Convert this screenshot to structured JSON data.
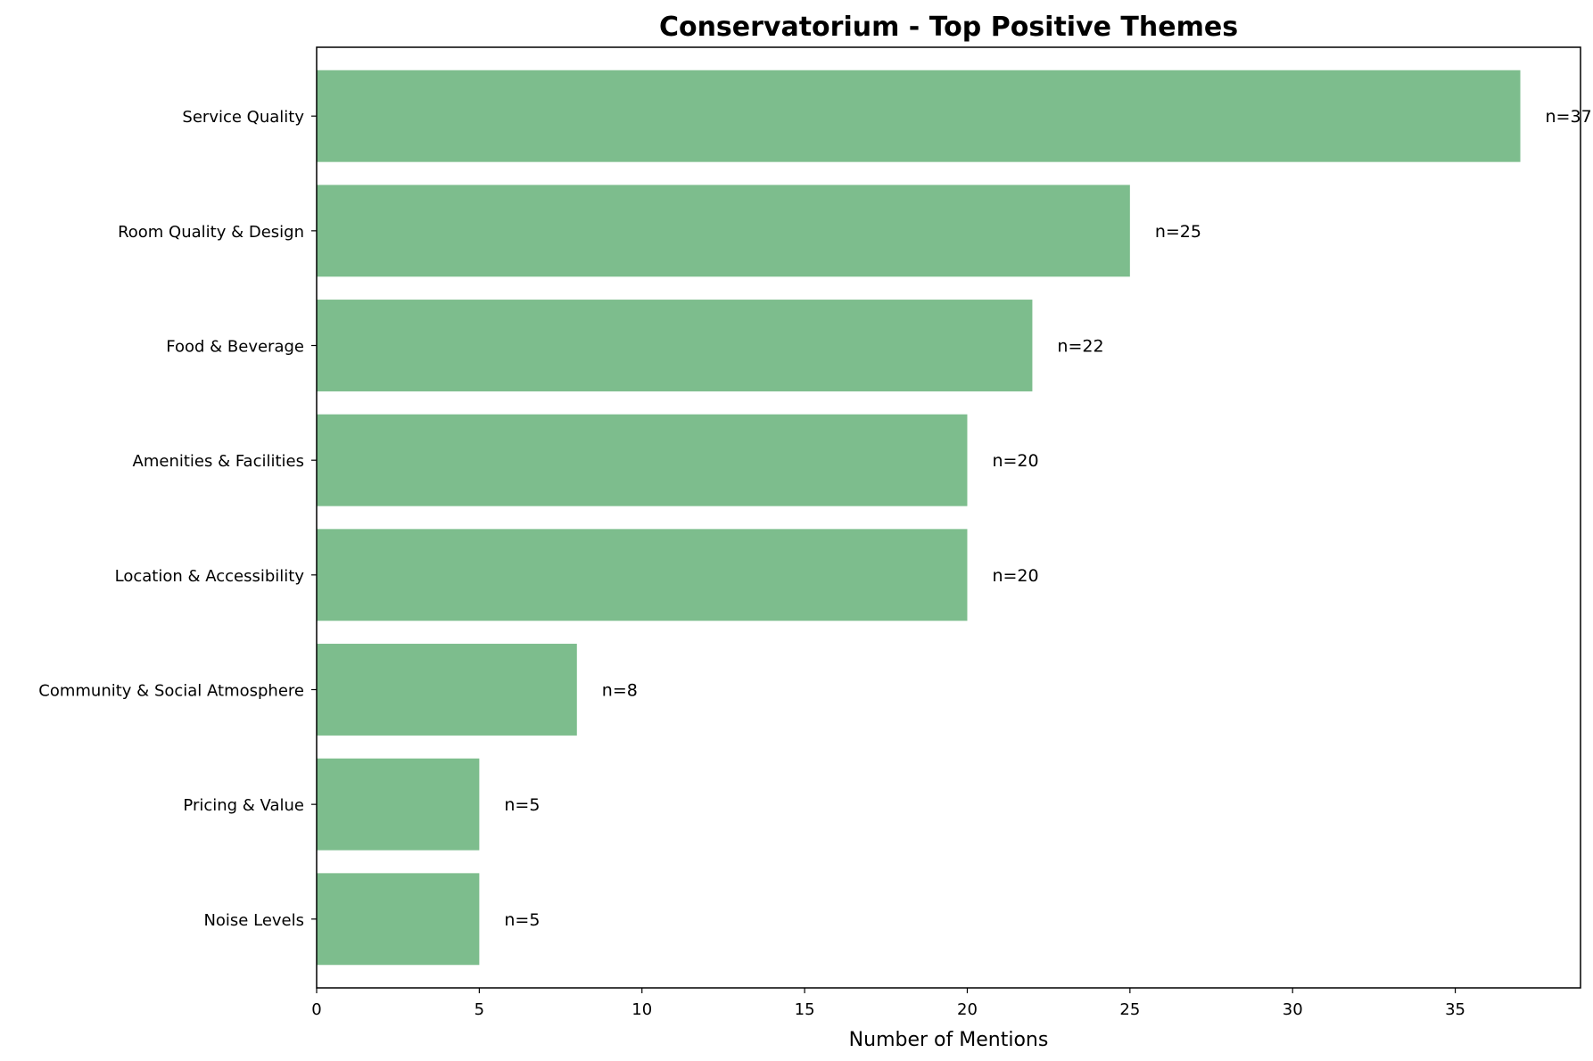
{
  "chart_data": {
    "type": "bar",
    "orientation": "horizontal",
    "title": "Conservatorium - Top Positive Themes",
    "xlabel": "Number of Mentions",
    "ylabel": "",
    "xlim": [
      0,
      38.85
    ],
    "x_ticks": [
      0,
      5,
      10,
      15,
      20,
      25,
      30,
      35
    ],
    "grid": false,
    "bar_color": "#7dbd8d",
    "categories": [
      "Service Quality",
      "Room Quality & Design",
      "Food & Beverage",
      "Amenities & Facilities",
      "Location & Accessibility",
      "Community & Social Atmosphere",
      "Pricing & Value",
      "Noise Levels"
    ],
    "values": [
      37,
      25,
      22,
      20,
      20,
      8,
      5,
      5
    ],
    "data_labels": [
      "n=37",
      "n=25",
      "n=22",
      "n=20",
      "n=20",
      "n=8",
      "n=5",
      "n=5"
    ]
  }
}
